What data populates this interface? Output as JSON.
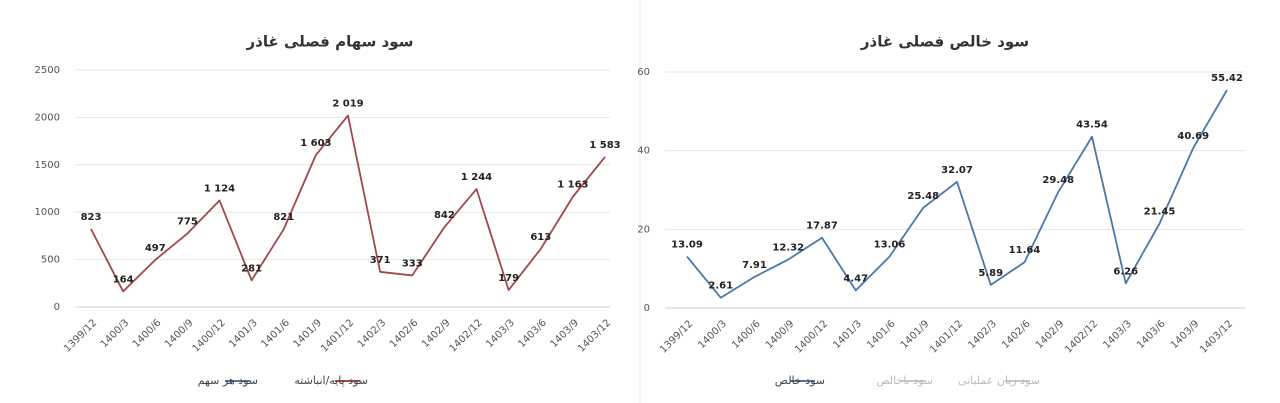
{
  "chart_data": [
    {
      "type": "line",
      "title": "سود سهام فصلی غاذر",
      "categories": [
        "1399/12",
        "1400/3",
        "1400/6",
        "1400/9",
        "1400/12",
        "1401/3",
        "1401/6",
        "1401/9",
        "1401/12",
        "1402/3",
        "1402/6",
        "1402/9",
        "1402/12",
        "1403/3",
        "1403/6",
        "1403/9",
        "1403/12"
      ],
      "series": [
        {
          "name": "سود هر سهم",
          "color": "#4a78a8",
          "values": [
            null,
            null,
            null,
            null,
            null,
            null,
            null,
            null,
            null,
            null,
            null,
            null,
            null,
            null,
            null,
            null,
            null
          ]
        },
        {
          "name": "سود پایه/انباشته",
          "color": "#a0484a",
          "values": [
            823,
            164,
            497,
            775,
            1124,
            281,
            821,
            1603,
            2019,
            371,
            333,
            842,
            1244,
            179,
            613,
            1163,
            1583
          ],
          "value_labels": [
            "823",
            "164",
            "497",
            "775",
            "1 124",
            "281",
            "821",
            "1 603",
            "2 019",
            "371",
            "333",
            "842",
            "1 244",
            "179",
            "613",
            "1 163",
            "1 583"
          ]
        }
      ],
      "ylim": [
        0,
        2500
      ],
      "yticks": [
        0,
        500,
        1000,
        1500,
        2000,
        2500
      ],
      "grid": true
    },
    {
      "type": "line",
      "title": "سود خالص فصلی غاذر",
      "categories": [
        "1399/12",
        "1400/3",
        "1400/6",
        "1400/9",
        "1400/12",
        "1401/3",
        "1401/6",
        "1401/9",
        "1401/12",
        "1402/3",
        "1402/6",
        "1402/9",
        "1402/12",
        "1403/3",
        "1403/6",
        "1403/9",
        "1403/12"
      ],
      "series": [
        {
          "name": "سود خالص",
          "color": "#4a78a8",
          "values": [
            13.09,
            2.61,
            7.91,
            12.32,
            17.87,
            4.47,
            13.06,
            25.48,
            32.07,
            5.89,
            11.64,
            29.48,
            43.54,
            6.26,
            21.45,
            40.69,
            55.42
          ]
        },
        {
          "name": "سود ناخالص",
          "color": "#c8c8c8",
          "values": [
            null,
            null,
            null,
            null,
            null,
            null,
            null,
            null,
            null,
            null,
            null,
            null,
            null,
            null,
            null,
            null,
            null
          ]
        },
        {
          "name": "سود زیان عملیاتی",
          "color": "#c8c8c8",
          "values": [
            null,
            null,
            null,
            null,
            null,
            null,
            null,
            null,
            null,
            null,
            null,
            null,
            null,
            null,
            null,
            null,
            null
          ]
        }
      ],
      "ylim": [
        0,
        60
      ],
      "yticks": [
        0,
        20,
        40,
        60
      ],
      "grid": true
    }
  ]
}
